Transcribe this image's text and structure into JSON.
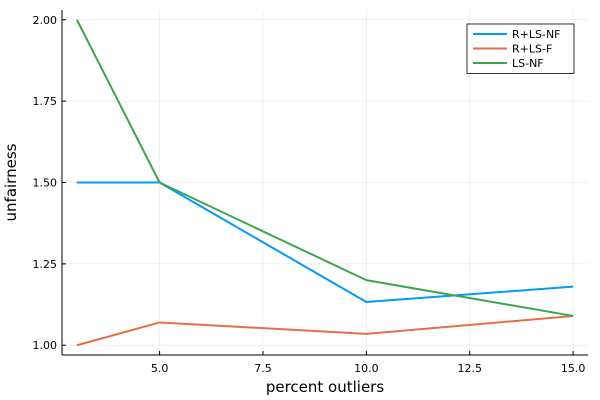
{
  "chart_data": {
    "type": "line",
    "xlabel": "percent outliers",
    "ylabel": "unfairness",
    "xlim": [
      2.64,
      15.36
    ],
    "ylim": [
      0.97,
      2.03
    ],
    "xticks": [
      5.0,
      7.5,
      10.0,
      12.5,
      15.0
    ],
    "xtick_labels": [
      "5.0",
      "7.5",
      "10.0",
      "12.5",
      "15.0"
    ],
    "yticks": [
      1.0,
      1.25,
      1.5,
      1.75,
      2.0
    ],
    "ytick_labels": [
      "1.00",
      "1.25",
      "1.50",
      "1.75",
      "2.00"
    ],
    "grid": true,
    "legend_position": "top-right",
    "series": [
      {
        "name": "R+LS-NF",
        "color": "#009AFA",
        "x": [
          3,
          5,
          10,
          15
        ],
        "y": [
          1.5,
          1.5,
          1.133,
          1.18
        ]
      },
      {
        "name": "R+LS-F",
        "color": "#E36F47",
        "x": [
          3,
          5,
          10,
          15
        ],
        "y": [
          1.0,
          1.07,
          1.035,
          1.09
        ]
      },
      {
        "name": "LS-NF",
        "color": "#3EA44E",
        "x": [
          3,
          5,
          10,
          15
        ],
        "y": [
          2.0,
          1.5,
          1.2,
          1.09
        ]
      }
    ]
  }
}
